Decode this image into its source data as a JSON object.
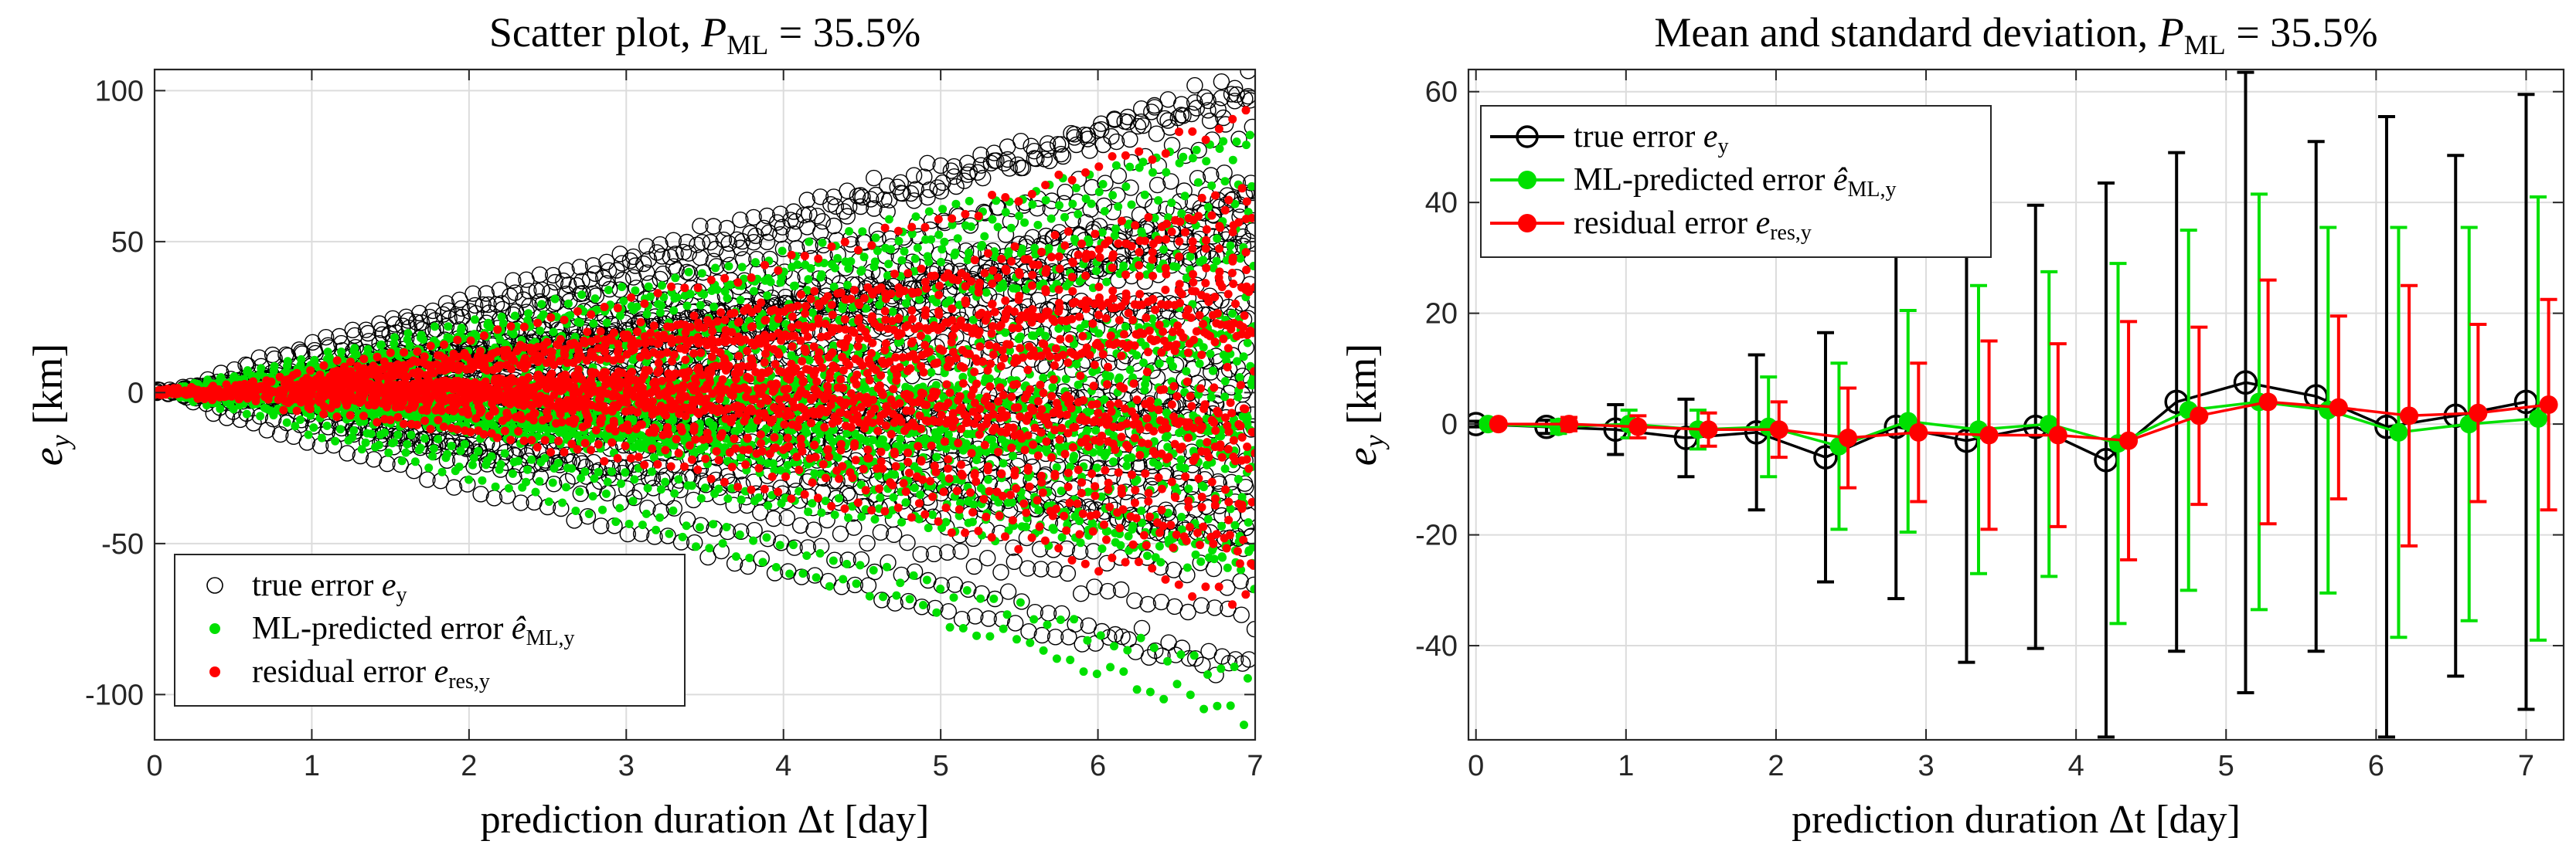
{
  "chart_data": [
    {
      "type": "scatter",
      "title": "Scatter plot, P_ML = 35.5%",
      "title_text": "Scatter plot, ",
      "title_math": "P",
      "title_sub": "ML",
      "title_tail": " = 35.5%",
      "xlabel": "prediction duration Δt [day]",
      "ylabel": "e_y [km]",
      "ylabel_base": "e",
      "ylabel_sub": "y",
      "ylabel_unit": " [km]",
      "xlim": [
        0,
        7
      ],
      "ylim": [
        -115,
        107
      ],
      "xticks": [
        0,
        1,
        2,
        3,
        4,
        5,
        6,
        7
      ],
      "yticks": [
        -100,
        -50,
        0,
        50,
        100
      ],
      "grid": true,
      "legend_placement": "bottom-left",
      "series": [
        {
          "name": "true error e_y",
          "label_text": "true error ",
          "label_math": "e",
          "label_sub": "y",
          "marker": "open-circle",
          "color": "#000000",
          "growth": 15.0,
          "lanes": 42
        },
        {
          "name": "ML-predicted error ê_ML,y",
          "label_text": "ML-predicted error ",
          "label_math": "ê",
          "label_sub": "ML,y",
          "marker": "dot",
          "color": "#00e000",
          "growth": 12.0,
          "lanes": 38
        },
        {
          "name": "residual error e_res,y",
          "label_text": "residual error ",
          "label_math": "e",
          "label_sub": "res,y",
          "marker": "dot",
          "color": "#ff0000",
          "growth": 6.5,
          "lanes": 34
        }
      ]
    },
    {
      "type": "line",
      "title": "Mean and standard deviation, P_ML = 35.5%",
      "title_text": "Mean and standard deviation, ",
      "title_math": "P",
      "title_sub": "ML",
      "title_tail": " = 35.5%",
      "xlabel": "prediction duration Δt [day]",
      "ylabel": "e_y [km]",
      "ylabel_base": "e",
      "ylabel_sub": "y",
      "ylabel_unit": " [km]",
      "xlim": [
        -0.05,
        7.25
      ],
      "ylim": [
        -57,
        64
      ],
      "xticks": [
        0,
        1,
        2,
        3,
        4,
        5,
        6,
        7
      ],
      "yticks": [
        -40,
        -20,
        0,
        20,
        40,
        60
      ],
      "grid": true,
      "legend_placement": "top-left",
      "series": [
        {
          "name": "true error e_y",
          "label_text": "true error ",
          "label_math": "e",
          "label_sub": "y",
          "color": "#000000",
          "marker": "open-circle",
          "x": [
            0,
            0.47,
            0.93,
            1.4,
            1.87,
            2.33,
            2.8,
            3.27,
            3.73,
            4.2,
            4.67,
            5.13,
            5.6,
            6.07,
            6.53,
            7.0
          ],
          "mean": [
            0,
            -0.5,
            -1,
            -2.5,
            -1.5,
            -6,
            -0.5,
            -3,
            -0.5,
            -6.5,
            4,
            7.5,
            5,
            -0.5,
            1.5,
            4
          ],
          "std": [
            0.5,
            1.2,
            4.5,
            7,
            14,
            22.5,
            31,
            40,
            40,
            50,
            45,
            56,
            46,
            56,
            47,
            55.5
          ]
        },
        {
          "name": "ML-predicted error ê_ML,y",
          "label_text": "ML-predicted error ",
          "label_math": "ê",
          "label_sub": "ML,y",
          "color": "#00e000",
          "marker": "dot",
          "x": [
            0.08,
            0.55,
            1.02,
            1.48,
            1.95,
            2.42,
            2.88,
            3.35,
            3.82,
            4.28,
            4.75,
            5.22,
            5.68,
            6.15,
            6.62,
            7.08
          ],
          "mean": [
            0,
            -0.5,
            0,
            -1,
            -0.5,
            -4,
            0.5,
            -1,
            0,
            -3.5,
            2.5,
            4,
            2.5,
            -1.5,
            0,
            1
          ],
          "std": [
            0.6,
            1.2,
            2.5,
            3.5,
            9,
            15,
            20,
            26,
            27.5,
            32.5,
            32.5,
            37.5,
            33,
            37,
            35.5,
            40
          ]
        },
        {
          "name": "residual error e_res,y",
          "label_text": "residual error ",
          "label_math": "e",
          "label_sub": "res,y",
          "color": "#ff0000",
          "marker": "dot",
          "x": [
            0.15,
            0.62,
            1.08,
            1.55,
            2.02,
            2.48,
            2.95,
            3.42,
            3.88,
            4.35,
            4.82,
            5.28,
            5.75,
            6.22,
            6.68,
            7.15
          ],
          "mean": [
            0,
            0,
            -0.5,
            -1,
            -1,
            -2.5,
            -1.5,
            -2,
            -2,
            -3,
            1.5,
            4,
            3,
            1.5,
            2,
            3.5
          ],
          "std": [
            0.5,
            1.2,
            2,
            3,
            5,
            9,
            12.5,
            17,
            16.5,
            21.5,
            16,
            22,
            16.5,
            23.5,
            16,
            19
          ]
        }
      ]
    }
  ]
}
